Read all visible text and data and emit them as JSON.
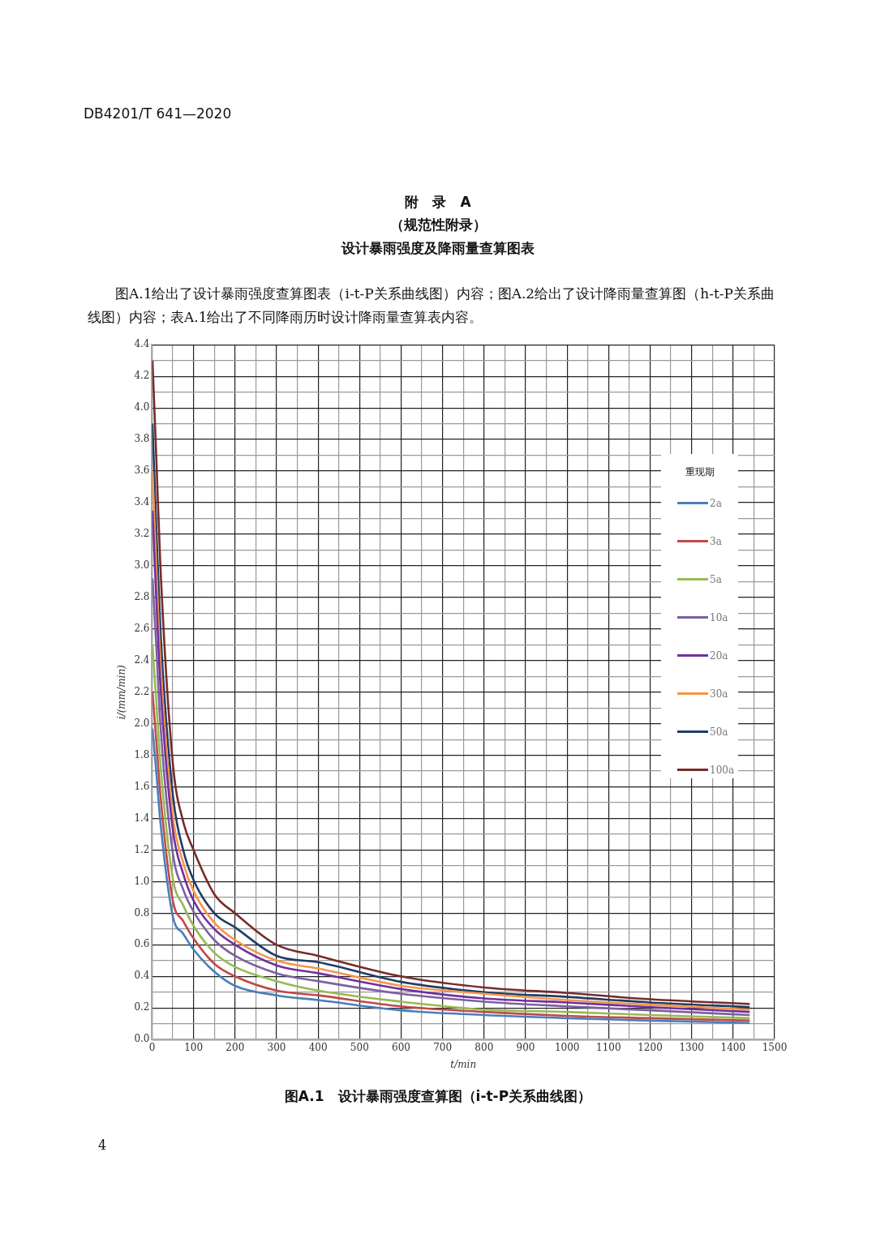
{
  "chart_data": {
    "type": "line",
    "title": "设计暴雨强度及降雨量查算图表",
    "subtitle": "图A.1给出了设计暴雨强度查算图表（i-t-P关系曲线图）内容；图A.2给出了设计降雨量查算图（h-t-P关系曲线图）内容；表A.1给出了不同降雨历时设计降雨量查算表内容。",
    "annotations": [
      "DB4201/T 641—2020",
      "附　录　A",
      "（规范性附录）",
      "图A.1　设计暴雨强度查算图（i-t-P关系曲线图）",
      "4"
    ],
    "xlabel": "t/min",
    "ylabel": "i/(mm/min)",
    "legend_title": "重现期",
    "legend": "right",
    "grid": true,
    "marker": "none",
    "x": [
      1,
      10,
      20,
      50,
      75,
      100,
      150,
      200,
      300,
      400,
      600,
      800,
      1000,
      1200,
      1440
    ],
    "xlim": [
      0,
      1500
    ],
    "xticks": [
      0,
      {
        "value": 50,
        "label": null
      },
      100,
      {
        "value": 150,
        "label": null
      },
      200,
      {
        "value": 250,
        "label": null
      },
      300,
      {
        "value": 350,
        "label": null
      },
      400,
      {
        "value": 450,
        "label": null
      },
      500,
      {
        "value": 550,
        "label": null
      },
      600,
      {
        "value": 650,
        "label": null
      },
      700,
      {
        "value": 750,
        "label": null
      },
      800,
      {
        "value": 850,
        "label": null
      },
      900,
      {
        "value": 950,
        "label": null
      },
      1000,
      {
        "value": 1050,
        "label": null
      },
      1100,
      {
        "value": 1150,
        "label": null
      },
      1200,
      {
        "value": 1250,
        "label": null
      },
      1300,
      {
        "value": 1350,
        "label": null
      },
      1400,
      {
        "value": 1450,
        "label": null
      },
      1500
    ],
    "ylim": [
      0,
      4.4
    ],
    "yticks": [
      {
        "value": 0,
        "label": "0.0"
      },
      {
        "value": 0.1,
        "label": null
      },
      0.2,
      {
        "value": 0.3,
        "label": null
      },
      0.4,
      {
        "value": 0.5,
        "label": null
      },
      0.6,
      {
        "value": 0.7,
        "label": null
      },
      0.8,
      {
        "value": 0.9,
        "label": null
      },
      {
        "value": 1,
        "label": "1.0"
      },
      {
        "value": 1.1,
        "label": null
      },
      1.2,
      {
        "value": 1.3,
        "label": null
      },
      1.4,
      {
        "value": 1.5,
        "label": null
      },
      1.6,
      {
        "value": 1.7,
        "label": null
      },
      1.8,
      {
        "value": 1.9,
        "label": null
      },
      {
        "value": 2,
        "label": "2.0"
      },
      {
        "value": 2.1,
        "label": null
      },
      2.2,
      {
        "value": 2.3,
        "label": null
      },
      2.4,
      {
        "value": 2.5,
        "label": null
      },
      2.6,
      {
        "value": 2.7,
        "label": null
      },
      2.8,
      {
        "value": 2.9,
        "label": null
      },
      {
        "value": 3,
        "label": "3.0"
      },
      {
        "value": 3.1,
        "label": null
      },
      3.2,
      {
        "value": 3.3,
        "label": null
      },
      3.4,
      {
        "value": 3.5,
        "label": null
      },
      3.6,
      {
        "value": 3.7,
        "label": null
      },
      3.8,
      {
        "value": 3.9,
        "label": null
      },
      {
        "value": 4,
        "label": "4.0"
      },
      {
        "value": 4.1,
        "label": null
      },
      4.2,
      {
        "value": 4.3,
        "label": null
      },
      4.4
    ],
    "series": [
      {
        "name": "2a",
        "color": "#4a7ebb",
        "values": [
          1.97,
          1.7,
          1.38,
          0.78,
          0.67,
          0.57,
          0.43,
          0.34,
          0.28,
          0.25,
          0.185,
          0.155,
          0.135,
          0.12,
          0.105
        ]
      },
      {
        "name": "3a",
        "color": "#be4b48",
        "values": [
          2.2,
          1.9,
          1.55,
          0.88,
          0.75,
          0.64,
          0.48,
          0.4,
          0.31,
          0.28,
          0.21,
          0.175,
          0.15,
          0.135,
          0.12
        ]
      },
      {
        "name": "5a",
        "color": "#98b954",
        "values": [
          2.5,
          2.15,
          1.75,
          1.02,
          0.85,
          0.72,
          0.55,
          0.46,
          0.37,
          0.31,
          0.24,
          0.19,
          0.175,
          0.155,
          0.135
        ]
      },
      {
        "name": "10a",
        "color": "#7d60a0",
        "values": [
          2.92,
          2.5,
          2.0,
          1.18,
          0.95,
          0.81,
          0.63,
          0.53,
          0.42,
          0.37,
          0.29,
          0.24,
          0.21,
          0.185,
          0.155
        ]
      },
      {
        "name": "20a",
        "color": "#7030a0",
        "values": [
          3.35,
          2.8,
          2.25,
          1.33,
          1.05,
          0.88,
          0.7,
          0.6,
          0.47,
          0.42,
          0.32,
          0.26,
          0.235,
          0.205,
          0.175
        ]
      },
      {
        "name": "30a",
        "color": "#f79646",
        "values": [
          3.6,
          3.0,
          2.4,
          1.42,
          1.12,
          0.94,
          0.74,
          0.63,
          0.5,
          0.45,
          0.34,
          0.29,
          0.25,
          0.22,
          0.19
        ]
      },
      {
        "name": "50a",
        "color": "#1f3d66",
        "values": [
          3.9,
          3.25,
          2.6,
          1.55,
          1.2,
          1.01,
          0.8,
          0.71,
          0.53,
          0.49,
          0.365,
          0.3,
          0.27,
          0.235,
          0.205
        ]
      },
      {
        "name": "100a",
        "color": "#772c2a",
        "values": [
          4.3,
          3.7,
          3.0,
          1.75,
          1.38,
          1.2,
          0.92,
          0.8,
          0.6,
          0.53,
          0.4,
          0.33,
          0.295,
          0.255,
          0.225
        ]
      }
    ]
  }
}
